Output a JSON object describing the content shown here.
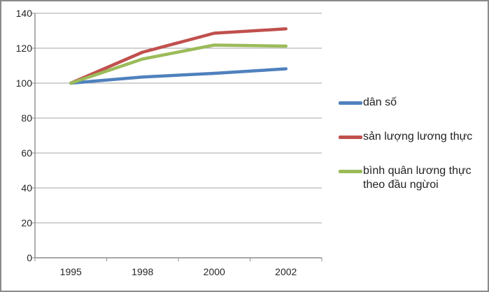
{
  "chart_data": {
    "type": "line",
    "title": "",
    "xlabel": "",
    "ylabel": "",
    "x_categories": [
      "1995",
      "1998",
      "2000",
      "2002"
    ],
    "y_ticks": [
      0,
      20,
      40,
      60,
      80,
      100,
      120,
      140
    ],
    "ylim": [
      0,
      140
    ],
    "grid": true,
    "legend_position": "right",
    "series": [
      {
        "name": "dân số",
        "color": "#4F81BD",
        "values": [
          100,
          103.5,
          105.6,
          108.2
        ]
      },
      {
        "name": "sản lượng lương thực",
        "color": "#C0504D",
        "values": [
          100,
          117.7,
          128.6,
          131.1
        ]
      },
      {
        "name": "bình quân lương thực theo đầu ngừoi",
        "color": "#9BBB59",
        "values": [
          100,
          113.8,
          121.8,
          121.2
        ]
      }
    ],
    "colors": {
      "grid_line": "#A6A6A6",
      "axis_line": "#8C8C8C",
      "tick_text": "#262626",
      "legend_text": "#222222",
      "chart_border": "#8A8A8A",
      "background": "#FFFFFF"
    }
  }
}
